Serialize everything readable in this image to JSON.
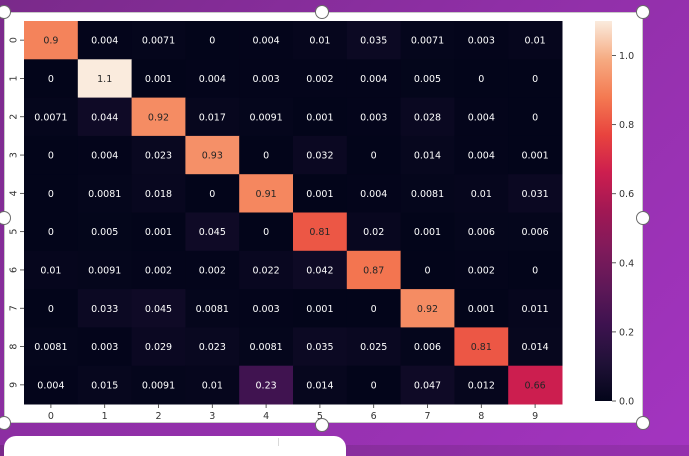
{
  "chart_data": {
    "type": "heatmap",
    "x_labels": [
      "0",
      "1",
      "2",
      "3",
      "4",
      "5",
      "6",
      "7",
      "8",
      "9"
    ],
    "y_labels": [
      "0",
      "1",
      "2",
      "3",
      "4",
      "5",
      "6",
      "7",
      "8",
      "9"
    ],
    "values": [
      [
        "0.9",
        "0.004",
        "0.0071",
        "0",
        "0.004",
        "0.01",
        "0.035",
        "0.0071",
        "0.003",
        "0.01"
      ],
      [
        "0",
        "1.1",
        "0.001",
        "0.004",
        "0.003",
        "0.002",
        "0.004",
        "0.005",
        "0",
        "0"
      ],
      [
        "0.0071",
        "0.044",
        "0.92",
        "0.017",
        "0.0091",
        "0.001",
        "0.003",
        "0.028",
        "0.004",
        "0"
      ],
      [
        "0",
        "0.004",
        "0.023",
        "0.93",
        "0",
        "0.032",
        "0",
        "0.014",
        "0.004",
        "0.001"
      ],
      [
        "0",
        "0.0081",
        "0.018",
        "0",
        "0.91",
        "0.001",
        "0.004",
        "0.0081",
        "0.01",
        "0.031"
      ],
      [
        "0",
        "0.005",
        "0.001",
        "0.045",
        "0",
        "0.81",
        "0.02",
        "0.001",
        "0.006",
        "0.006"
      ],
      [
        "0.01",
        "0.0091",
        "0.002",
        "0.002",
        "0.022",
        "0.042",
        "0.87",
        "0",
        "0.002",
        "0"
      ],
      [
        "0",
        "0.033",
        "0.045",
        "0.0081",
        "0.003",
        "0.001",
        "0",
        "0.92",
        "0.001",
        "0.011"
      ],
      [
        "0.0081",
        "0.003",
        "0.029",
        "0.023",
        "0.0081",
        "0.035",
        "0.025",
        "0.006",
        "0.81",
        "0.014"
      ],
      [
        "0.004",
        "0.015",
        "0.0091",
        "0.01",
        "0.23",
        "0.014",
        "0",
        "0.047",
        "0.012",
        "0.66"
      ]
    ],
    "colorbar": {
      "min": 0,
      "max": 1.1,
      "ticks": [
        "0.0",
        "0.2",
        "0.4",
        "0.6",
        "0.8",
        "1.0"
      ],
      "colormap": "rocket"
    },
    "xlabel": "",
    "ylabel": "",
    "title": ""
  }
}
